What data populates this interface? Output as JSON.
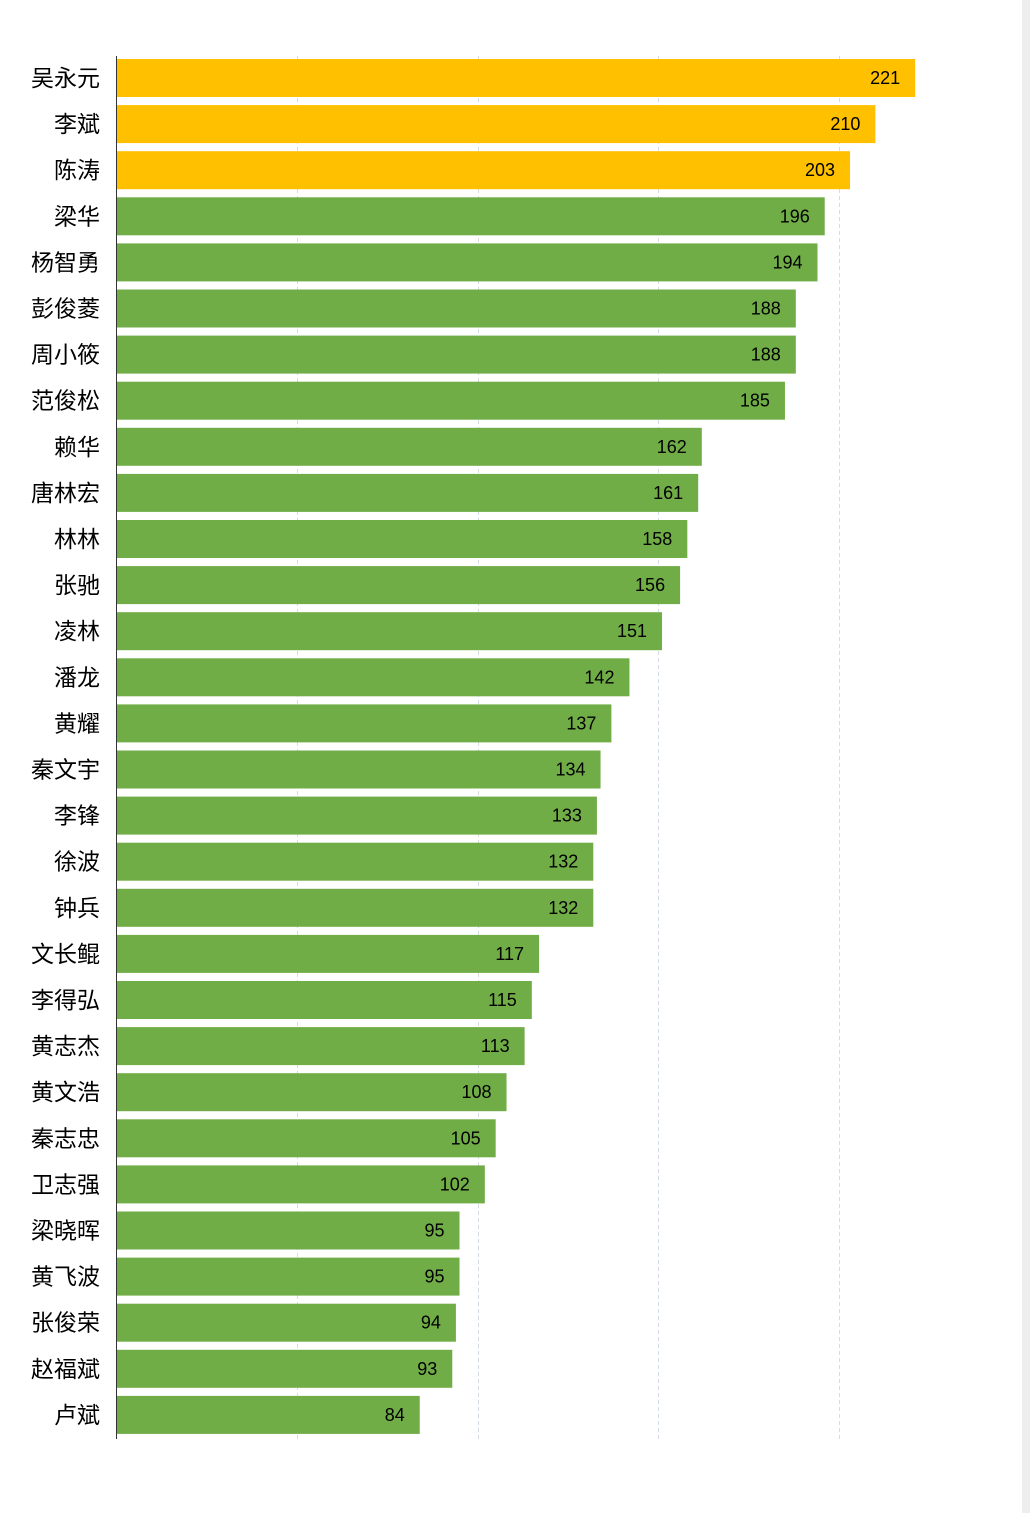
{
  "chart_data": {
    "type": "bar",
    "orientation": "horizontal",
    "categories": [
      "吴永元",
      "李斌",
      "陈涛",
      "梁华",
      "杨智勇",
      "彭俊菱",
      "周小筱",
      "范俊松",
      "赖华",
      "唐林宏",
      "林林",
      "张驰",
      "凌林",
      "潘龙",
      "黄耀",
      "秦文宇",
      "李锋",
      "徐波",
      "钟兵",
      "文长鲲",
      "李得弘",
      "黄志杰",
      "黄文浩",
      "秦志忠",
      "卫志强",
      "梁晓晖",
      "黄飞波",
      "张俊荣",
      "赵福斌",
      "卢斌"
    ],
    "values": [
      221,
      210,
      203,
      196,
      194,
      188,
      188,
      185,
      162,
      161,
      158,
      156,
      151,
      142,
      137,
      134,
      133,
      132,
      132,
      117,
      115,
      113,
      108,
      105,
      102,
      95,
      95,
      94,
      93,
      84
    ],
    "highlight_count": 3,
    "colors": {
      "highlight": "#FFC000",
      "default": "#70AD47"
    },
    "xlim": [
      0,
      250
    ],
    "grid": true,
    "legend": "none",
    "title": "",
    "xlabel": "",
    "ylabel": ""
  }
}
